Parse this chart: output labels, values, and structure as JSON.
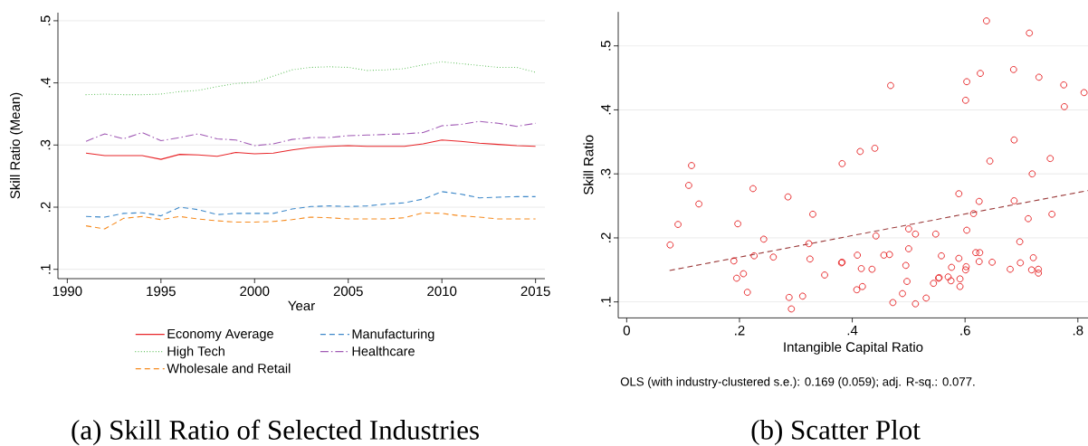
{
  "chart_data": [
    {
      "type": "line",
      "title": "(a) Skill Ratio of Selected Industries",
      "xlabel": "Year",
      "ylabel": "Skill Ratio (Mean)",
      "x": [
        1991,
        1992,
        1993,
        1994,
        1995,
        1996,
        1997,
        1998,
        1999,
        2000,
        2001,
        2002,
        2003,
        2004,
        2005,
        2006,
        2007,
        2008,
        2009,
        2010,
        2011,
        2012,
        2013,
        2014,
        2015
      ],
      "series": [
        {
          "name": "Economy Average",
          "color": "#e8262a",
          "line_style": "solid",
          "values": [
            0.287,
            0.283,
            0.283,
            0.283,
            0.277,
            0.285,
            0.284,
            0.282,
            0.288,
            0.286,
            0.287,
            0.292,
            0.296,
            0.298,
            0.299,
            0.298,
            0.298,
            0.298,
            0.302,
            0.308,
            0.306,
            0.303,
            0.301,
            0.299,
            0.298
          ]
        },
        {
          "name": "Manufacturing",
          "color": "#3d88c9",
          "line_style": "dashed",
          "values": [
            0.185,
            0.184,
            0.19,
            0.191,
            0.186,
            0.2,
            0.196,
            0.188,
            0.19,
            0.19,
            0.19,
            0.197,
            0.201,
            0.202,
            0.201,
            0.202,
            0.205,
            0.207,
            0.213,
            0.225,
            0.221,
            0.215,
            0.216,
            0.217,
            0.217
          ]
        },
        {
          "name": "High Tech",
          "color": "#4cb848",
          "line_style": "dotted",
          "values": [
            0.381,
            0.382,
            0.381,
            0.381,
            0.382,
            0.386,
            0.388,
            0.394,
            0.399,
            0.401,
            0.411,
            0.421,
            0.425,
            0.426,
            0.425,
            0.42,
            0.421,
            0.423,
            0.429,
            0.434,
            0.431,
            0.428,
            0.425,
            0.425,
            0.417
          ]
        },
        {
          "name": "Healthcare",
          "color": "#a15bb5",
          "line_style": "dashdot",
          "values": [
            0.306,
            0.318,
            0.31,
            0.32,
            0.307,
            0.312,
            0.318,
            0.31,
            0.308,
            0.299,
            0.302,
            0.309,
            0.312,
            0.312,
            0.315,
            0.316,
            0.317,
            0.318,
            0.32,
            0.331,
            0.333,
            0.338,
            0.335,
            0.33,
            0.335
          ]
        },
        {
          "name": "Wholesale and Retail",
          "color": "#f68b1f",
          "line_style": "dashed",
          "values": [
            0.17,
            0.165,
            0.182,
            0.185,
            0.18,
            0.185,
            0.181,
            0.178,
            0.176,
            0.176,
            0.177,
            0.18,
            0.184,
            0.183,
            0.181,
            0.181,
            0.181,
            0.183,
            0.191,
            0.19,
            0.186,
            0.184,
            0.181,
            0.181,
            0.181
          ]
        }
      ],
      "xlim": [
        1989.5,
        2015.5
      ],
      "ylim": [
        0.085,
        0.513
      ],
      "xticks": [
        1990,
        1995,
        2000,
        2005,
        2010,
        2015
      ],
      "yticks": [
        {
          "value": 0.1,
          "label": ".1"
        },
        {
          "value": 0.2,
          "label": ".2"
        },
        {
          "value": 0.3,
          "label": ".3"
        },
        {
          "value": 0.4,
          "label": ".4"
        },
        {
          "value": 0.5,
          "label": ".5"
        }
      ],
      "grid": "y",
      "legend": "bottom"
    },
    {
      "type": "scatter",
      "title": "(b) Scatter Plot",
      "xlabel": "Intangible Capital Ratio",
      "ylabel": "Skill Ratio",
      "annotations": [
        "OLS (with industry-clustered s.e.): 0.169 (0.059); adj. R-sq.: 0.077."
      ],
      "series": [
        {
          "color": "#e41a1c",
          "marker": "circle",
          "x": [
            0.115,
            0.382,
            0.414,
            0.44,
            0.468,
            0.601,
            0.603,
            0.627,
            0.638,
            0.644,
            0.686,
            0.687,
            0.714,
            0.731,
            0.719,
            0.751,
            0.775,
            0.776,
            0.811,
            0.11,
            0.091,
            0.128,
            0.077,
            0.224,
            0.197,
            0.286,
            0.33,
            0.243,
            0.323,
            0.19,
            0.226,
            0.26,
            0.325,
            0.195,
            0.207,
            0.214,
            0.288,
            0.292,
            0.312,
            0.351,
            0.381,
            0.382,
            0.409,
            0.416,
            0.408,
            0.418,
            0.442,
            0.435,
            0.456,
            0.466,
            0.472,
            0.489,
            0.495,
            0.497,
            0.5,
            0.5,
            0.512,
            0.512,
            0.531,
            0.544,
            0.548,
            0.553,
            0.554,
            0.558,
            0.57,
            0.575,
            0.576,
            0.589,
            0.589,
            0.591,
            0.591,
            0.601,
            0.602,
            0.603,
            0.615,
            0.619,
            0.626,
            0.625,
            0.625,
            0.648,
            0.68,
            0.687,
            0.697,
            0.698,
            0.712,
            0.718,
            0.721,
            0.73,
            0.73,
            0.754
          ],
          "values": [
            0.313,
            0.316,
            0.335,
            0.34,
            0.438,
            0.415,
            0.444,
            0.457,
            0.539,
            0.32,
            0.463,
            0.353,
            0.52,
            0.451,
            0.3,
            0.324,
            0.439,
            0.405,
            0.427,
            0.282,
            0.221,
            0.253,
            0.189,
            0.277,
            0.222,
            0.264,
            0.237,
            0.198,
            0.191,
            0.164,
            0.172,
            0.17,
            0.167,
            0.137,
            0.144,
            0.115,
            0.107,
            0.089,
            0.109,
            0.142,
            0.161,
            0.162,
            0.173,
            0.152,
            0.119,
            0.124,
            0.203,
            0.151,
            0.173,
            0.174,
            0.099,
            0.113,
            0.157,
            0.132,
            0.214,
            0.183,
            0.206,
            0.097,
            0.106,
            0.129,
            0.206,
            0.137,
            0.138,
            0.172,
            0.139,
            0.133,
            0.154,
            0.269,
            0.168,
            0.136,
            0.124,
            0.15,
            0.155,
            0.212,
            0.238,
            0.177,
            0.177,
            0.257,
            0.163,
            0.162,
            0.151,
            0.258,
            0.194,
            0.161,
            0.23,
            0.15,
            0.169,
            0.151,
            0.145,
            0.237
          ]
        },
        {
          "type": "line",
          "color": "#9c3d3d",
          "line_style": "dashed",
          "x": [
            0.076,
            0.818
          ],
          "values": [
            0.149,
            0.274
          ]
        }
      ],
      "xlim": [
        -0.015,
        0.818
      ],
      "ylim": [
        0.075,
        0.553
      ],
      "xticks": [
        0,
        {
          "value": 0.2,
          "label": ".2"
        },
        {
          "value": 0.4,
          "label": ".4"
        },
        {
          "value": 0.6,
          "label": ".6"
        },
        {
          "value": 0.8,
          "label": ".8"
        }
      ],
      "yticks": [
        {
          "value": 0.1,
          "label": ".1"
        },
        {
          "value": 0.2,
          "label": ".2"
        },
        {
          "value": 0.3,
          "label": ".3"
        },
        {
          "value": 0.4,
          "label": ".4"
        },
        {
          "value": 0.5,
          "label": ".5"
        }
      ],
      "grid": "y"
    }
  ]
}
